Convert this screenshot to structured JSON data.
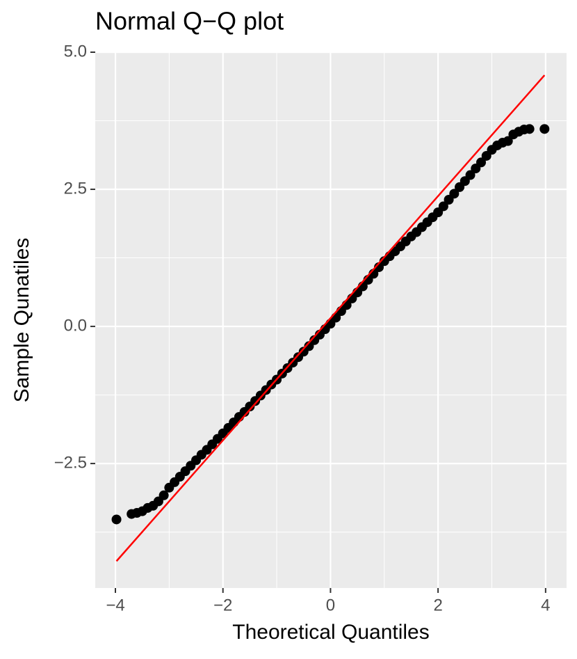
{
  "chart_data": {
    "type": "scatter",
    "title": "Normal Q−Q plot",
    "x_label": "Theoretical Quantiles",
    "y_label": "Sample Qunatiles",
    "x": [
      -3.98,
      -3.7,
      -3.6,
      -3.5,
      -3.4,
      -3.3,
      -3.2,
      -3.1,
      -3.0,
      -2.9,
      -2.8,
      -2.7,
      -2.6,
      -2.5,
      -2.4,
      -2.3,
      -2.2,
      -2.1,
      -2.0,
      -1.9,
      -1.8,
      -1.7,
      -1.6,
      -1.5,
      -1.4,
      -1.3,
      -1.2,
      -1.1,
      -1.0,
      -0.9,
      -0.8,
      -0.7,
      -0.6,
      -0.5,
      -0.4,
      -0.3,
      -0.2,
      -0.1,
      0.0,
      0.1,
      0.2,
      0.3,
      0.4,
      0.5,
      0.6,
      0.7,
      0.8,
      0.9,
      1.0,
      1.1,
      1.2,
      1.3,
      1.4,
      1.5,
      1.6,
      1.7,
      1.8,
      1.9,
      2.0,
      2.1,
      2.2,
      2.3,
      2.4,
      2.5,
      2.6,
      2.7,
      2.8,
      2.9,
      3.0,
      3.1,
      3.2,
      3.3,
      3.4,
      3.5,
      3.6,
      3.7,
      3.98
    ],
    "values": [
      -3.52,
      -3.42,
      -3.4,
      -3.37,
      -3.31,
      -3.27,
      -3.19,
      -3.08,
      -2.94,
      -2.84,
      -2.74,
      -2.64,
      -2.54,
      -2.44,
      -2.34,
      -2.25,
      -2.15,
      -2.05,
      -1.95,
      -1.85,
      -1.75,
      -1.65,
      -1.56,
      -1.46,
      -1.36,
      -1.26,
      -1.16,
      -1.06,
      -0.97,
      -0.86,
      -0.76,
      -0.66,
      -0.56,
      -0.46,
      -0.36,
      -0.25,
      -0.15,
      -0.05,
      0.05,
      0.16,
      0.28,
      0.39,
      0.51,
      0.62,
      0.73,
      0.85,
      0.96,
      1.08,
      1.19,
      1.28,
      1.37,
      1.46,
      1.55,
      1.64,
      1.72,
      1.81,
      1.9,
      1.99,
      2.08,
      2.19,
      2.31,
      2.42,
      2.54,
      2.65,
      2.76,
      2.88,
      2.99,
      3.11,
      3.22,
      3.3,
      3.35,
      3.38,
      3.5,
      3.55,
      3.59,
      3.6,
      3.6
    ],
    "color": "#000000",
    "reference_line": {
      "x": [
        -3.98,
        3.98
      ],
      "y": [
        -4.28,
        4.58
      ],
      "color": "#ff0000"
    },
    "xlim": [
      -4.375,
      4.39
    ],
    "ylim": [
      -4.77,
      5.0
    ],
    "xticks": [
      {
        "value": -4,
        "label": "−4"
      },
      {
        "value": -2,
        "label": "−2"
      },
      0,
      2,
      4
    ],
    "yticks": [
      {
        "value": -2.5,
        "label": "−2.5"
      },
      {
        "value": 0,
        "label": "0.0"
      },
      {
        "value": 2.5,
        "label": "2.5"
      },
      {
        "value": 5,
        "label": "5.0"
      }
    ],
    "xminor": [
      -3,
      -1,
      1,
      3
    ],
    "yminor": [
      -3.75,
      -1.25,
      1.25,
      3.75
    ],
    "grid": true
  }
}
